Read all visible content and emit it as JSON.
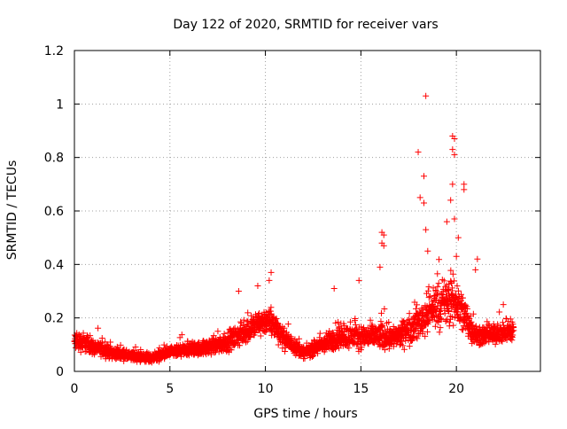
{
  "chart_data": {
    "type": "scatter",
    "title": "Day 122 of 2020, SRMTID for receiver vars",
    "xlabel": "GPS time / hours",
    "ylabel": "SRMTID / TECUs",
    "xlim": [
      0,
      24.4
    ],
    "ylim": [
      0,
      1.2
    ],
    "xticks": [
      0,
      5,
      10,
      15,
      20
    ],
    "xtick_labels": [
      "0",
      "5",
      "10",
      "15",
      "20"
    ],
    "yticks": [
      0,
      0.2,
      0.4,
      0.6,
      0.8,
      1.0,
      1.2
    ],
    "ytick_labels": [
      "0",
      "0.2",
      "0.4",
      "0.6",
      "0.8",
      "1",
      "1.2"
    ],
    "grid": true,
    "marker": "+",
    "marker_color": "#ff0000",
    "series": [
      {
        "name": "SRMTID",
        "x_range": [
          0,
          23
        ],
        "point_count": 2760,
        "envelope": [
          {
            "x": 0.0,
            "center": 0.11,
            "spread": 0.05
          },
          {
            "x": 0.5,
            "center": 0.11,
            "spread": 0.05
          },
          {
            "x": 1.0,
            "center": 0.09,
            "spread": 0.04
          },
          {
            "x": 2.0,
            "center": 0.07,
            "spread": 0.03
          },
          {
            "x": 3.0,
            "center": 0.055,
            "spread": 0.025
          },
          {
            "x": 4.0,
            "center": 0.05,
            "spread": 0.025
          },
          {
            "x": 5.0,
            "center": 0.07,
            "spread": 0.03
          },
          {
            "x": 6.0,
            "center": 0.08,
            "spread": 0.035
          },
          {
            "x": 7.0,
            "center": 0.09,
            "spread": 0.04
          },
          {
            "x": 8.0,
            "center": 0.11,
            "spread": 0.05
          },
          {
            "x": 9.0,
            "center": 0.15,
            "spread": 0.06
          },
          {
            "x": 10.0,
            "center": 0.19,
            "spread": 0.07
          },
          {
            "x": 10.5,
            "center": 0.17,
            "spread": 0.07
          },
          {
            "x": 11.0,
            "center": 0.12,
            "spread": 0.05
          },
          {
            "x": 12.0,
            "center": 0.07,
            "spread": 0.03
          },
          {
            "x": 13.0,
            "center": 0.1,
            "spread": 0.05
          },
          {
            "x": 14.0,
            "center": 0.13,
            "spread": 0.06
          },
          {
            "x": 15.0,
            "center": 0.13,
            "spread": 0.06
          },
          {
            "x": 16.0,
            "center": 0.13,
            "spread": 0.07
          },
          {
            "x": 17.0,
            "center": 0.13,
            "spread": 0.06
          },
          {
            "x": 18.0,
            "center": 0.18,
            "spread": 0.09
          },
          {
            "x": 19.0,
            "center": 0.25,
            "spread": 0.12
          },
          {
            "x": 20.0,
            "center": 0.26,
            "spread": 0.13
          },
          {
            "x": 20.5,
            "center": 0.2,
            "spread": 0.1
          },
          {
            "x": 21.0,
            "center": 0.13,
            "spread": 0.05
          },
          {
            "x": 22.0,
            "center": 0.14,
            "spread": 0.05
          },
          {
            "x": 23.0,
            "center": 0.15,
            "spread": 0.06
          }
        ],
        "outliers": [
          {
            "x": 18.4,
            "y": 1.03
          },
          {
            "x": 19.8,
            "y": 0.88
          },
          {
            "x": 19.9,
            "y": 0.87
          },
          {
            "x": 18.0,
            "y": 0.82
          },
          {
            "x": 19.8,
            "y": 0.83
          },
          {
            "x": 19.9,
            "y": 0.81
          },
          {
            "x": 18.3,
            "y": 0.73
          },
          {
            "x": 19.8,
            "y": 0.7
          },
          {
            "x": 20.4,
            "y": 0.7
          },
          {
            "x": 20.4,
            "y": 0.68
          },
          {
            "x": 18.1,
            "y": 0.65
          },
          {
            "x": 18.3,
            "y": 0.63
          },
          {
            "x": 19.7,
            "y": 0.64
          },
          {
            "x": 19.5,
            "y": 0.56
          },
          {
            "x": 19.9,
            "y": 0.57
          },
          {
            "x": 18.4,
            "y": 0.53
          },
          {
            "x": 16.1,
            "y": 0.52
          },
          {
            "x": 16.2,
            "y": 0.51
          },
          {
            "x": 16.1,
            "y": 0.48
          },
          {
            "x": 16.2,
            "y": 0.47
          },
          {
            "x": 18.5,
            "y": 0.45
          },
          {
            "x": 20.1,
            "y": 0.5
          },
          {
            "x": 20.0,
            "y": 0.43
          },
          {
            "x": 21.1,
            "y": 0.42
          },
          {
            "x": 16.0,
            "y": 0.39
          },
          {
            "x": 10.3,
            "y": 0.37
          },
          {
            "x": 14.9,
            "y": 0.34
          },
          {
            "x": 10.2,
            "y": 0.34
          },
          {
            "x": 9.6,
            "y": 0.32
          },
          {
            "x": 8.6,
            "y": 0.3
          },
          {
            "x": 13.6,
            "y": 0.31
          },
          {
            "x": 21.0,
            "y": 0.38
          }
        ]
      }
    ]
  }
}
